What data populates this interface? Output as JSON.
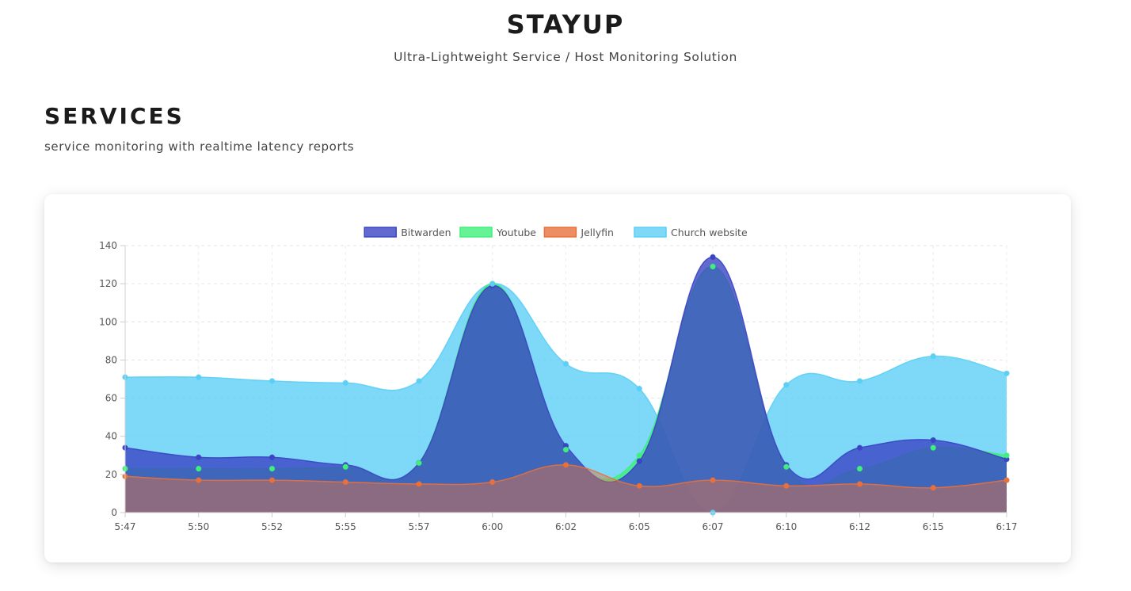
{
  "header": {
    "title": "STAYUP",
    "subtitle": "Ultra-Lightweight Service / Host Monitoring Solution"
  },
  "section": {
    "title": "SERVICES",
    "subtitle": "service monitoring with realtime latency reports"
  },
  "chart_data": {
    "type": "area",
    "title": "",
    "xlabel": "",
    "ylabel": "",
    "ylim": [
      0,
      140
    ],
    "yticks": [
      0,
      20,
      40,
      60,
      80,
      100,
      120,
      140
    ],
    "grid": true,
    "legend_position": "top",
    "categories": [
      "5:47",
      "5:50",
      "5:52",
      "5:55",
      "5:57",
      "6:00",
      "6:02",
      "6:05",
      "6:07",
      "6:10",
      "6:12",
      "6:15",
      "6:17"
    ],
    "series": [
      {
        "name": "Bitwarden",
        "color": "#3b45c4",
        "values": [
          34,
          29,
          29,
          25,
          26,
          119,
          35,
          27,
          134,
          25,
          34,
          38,
          28
        ]
      },
      {
        "name": "Youtube",
        "color": "#3ff07a",
        "values": [
          23,
          23,
          23,
          24,
          26,
          120,
          33,
          30,
          129,
          24,
          23,
          34,
          30
        ]
      },
      {
        "name": "Jellyfin",
        "color": "#e8703c",
        "values": [
          19,
          17,
          17,
          16,
          15,
          16,
          25,
          14,
          17,
          14,
          15,
          13,
          17
        ]
      },
      {
        "name": "Church website",
        "color": "#5ccff5",
        "values": [
          71,
          71,
          69,
          68,
          69,
          120,
          78,
          65,
          0,
          67,
          69,
          82,
          73
        ]
      }
    ]
  }
}
